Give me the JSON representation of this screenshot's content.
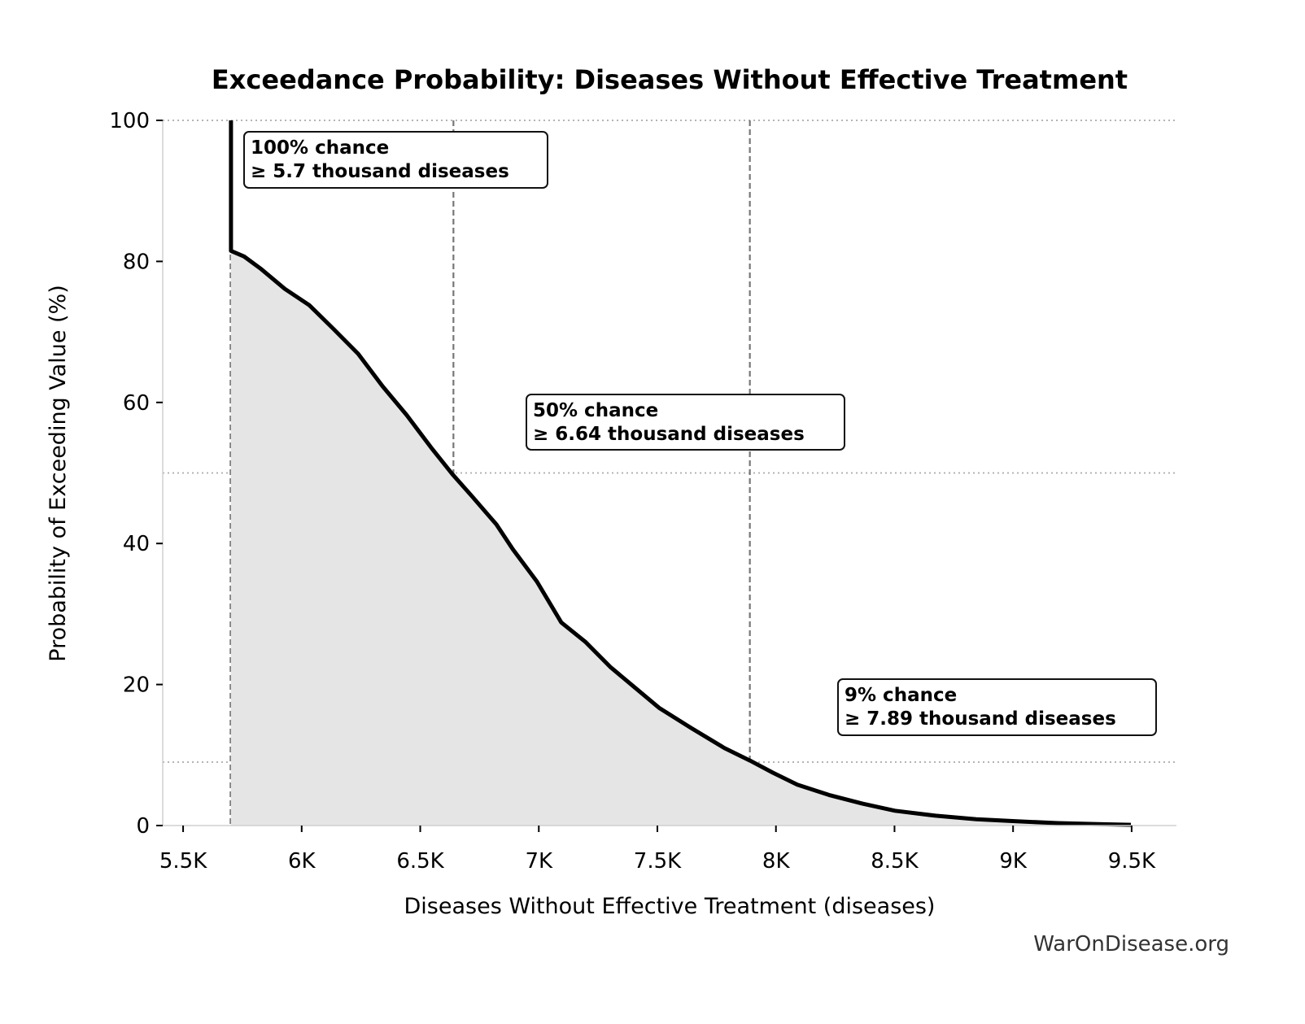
{
  "chart_data": {
    "type": "area",
    "title": "Exceedance Probability: Diseases Without Effective Treatment",
    "xlabel": "Diseases Without Effective Treatment (diseases)",
    "ylabel": "Probability of Exceeding Value (%)",
    "xlim": [
      5414,
      9689
    ],
    "ylim": [
      0,
      100
    ],
    "x_ticks": [
      5500,
      6000,
      6500,
      7000,
      7500,
      8000,
      8500,
      9000,
      9500
    ],
    "x_tick_labels": [
      "5.5K",
      "6K",
      "6.5K",
      "7K",
      "7.5K",
      "8K",
      "8.5K",
      "9K",
      "9.5K"
    ],
    "y_ticks": [
      0,
      20,
      40,
      60,
      80,
      100
    ],
    "y_tick_labels": [
      "0",
      "20",
      "40",
      "60",
      "80",
      "100"
    ],
    "grid": false,
    "series": [
      {
        "x": [
          5702,
          5702,
          5757,
          5826,
          5929,
          6032,
          6135,
          6238,
          6341,
          6443,
          6546,
          6636,
          6718,
          6821,
          6890,
          6992,
          7095,
          7198,
          7301,
          7404,
          7507,
          7644,
          7782,
          7891,
          7987,
          8090,
          8227,
          8365,
          8502,
          8673,
          8845,
          9016,
          9188,
          9359,
          9497
        ],
        "y": [
          100,
          81.5,
          80.7,
          79.0,
          76.1,
          73.8,
          70.4,
          66.9,
          62.3,
          58.2,
          53.6,
          49.8,
          46.7,
          42.7,
          39.2,
          34.6,
          28.8,
          26.0,
          22.5,
          19.6,
          16.7,
          13.8,
          11.0,
          9.2,
          7.5,
          5.8,
          4.3,
          3.1,
          2.1,
          1.4,
          0.9,
          0.6,
          0.35,
          0.2,
          0.1
        ],
        "color": "#000000",
        "fill": "#e5e5e5"
      }
    ],
    "reference_lines": {
      "vertical_x": [
        5700,
        6640,
        7890
      ],
      "horizontal_y": [
        100,
        50,
        9
      ]
    },
    "annotations": [
      {
        "line1": "100% chance",
        "line2": "≥ 5.7 thousand diseases"
      },
      {
        "line1": "50% chance",
        "line2": "≥ 6.64 thousand diseases"
      },
      {
        "line1": "9% chance",
        "line2": "≥ 7.89 thousand diseases"
      }
    ],
    "watermark": "WarOnDisease.org"
  }
}
